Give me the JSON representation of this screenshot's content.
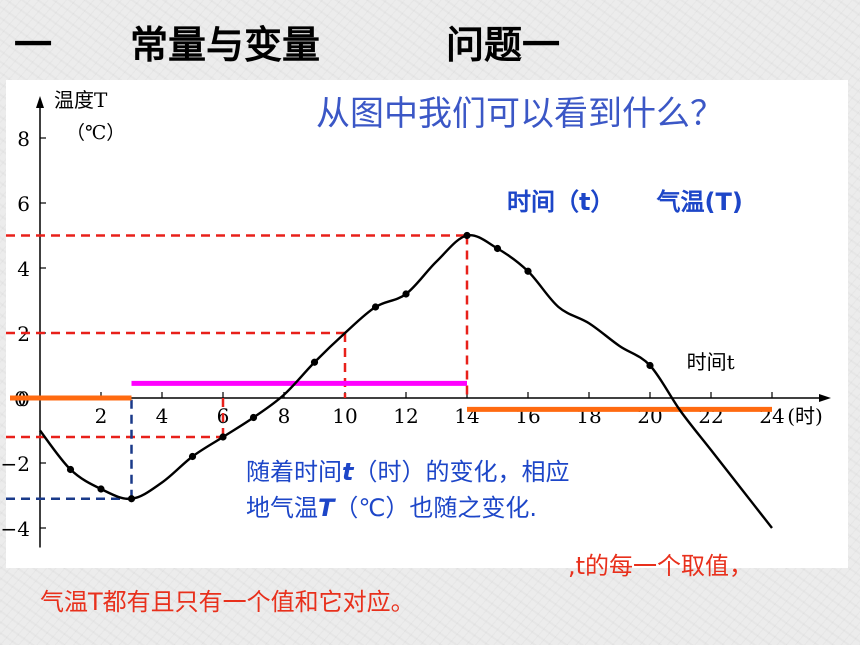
{
  "header": {
    "section_number": "一",
    "section_title": "常量与变量",
    "question_label": "问题一"
  },
  "question_text": "从图中我们可以看到什么？",
  "variables": {
    "time_label": "时间（t）",
    "temp_label": "气温(T)"
  },
  "observation": {
    "line1_pre": "随着时间",
    "line1_var": "t",
    "line1_post": "（时）的变化，相应",
    "line2_pre": "地气温",
    "line2_var": "T",
    "line2_post": "（℃）也随之变化."
  },
  "conclusion": {
    "line1": ",t的每一个取值，",
    "line2": "气温T都有且只有一个值和它对应。"
  },
  "colors": {
    "title": "#000000",
    "question": "#3b57c6",
    "annotation_blue": "#1d46c8",
    "conclusion_red": "#e8301c",
    "dashed_red": "#e8201a",
    "dashed_navy": "#1a3a8a",
    "magenta": "#ff00ff",
    "orange": "#ff6a10"
  },
  "chart_data": {
    "type": "line",
    "ylabel": "温度T",
    "yunit": "（℃）",
    "xlabel": "时间t",
    "xunit": "(时)",
    "xlim": [
      0,
      26
    ],
    "ylim": [
      -4.6,
      9
    ],
    "x_ticks": [
      2,
      4,
      6,
      8,
      10,
      12,
      14,
      16,
      18,
      20,
      22,
      24
    ],
    "y_ticks": [
      -4,
      -2,
      0,
      2,
      4,
      6,
      8
    ],
    "series": [
      {
        "x": [
          0,
          1,
          2,
          3,
          4,
          5,
          6,
          7,
          8,
          9,
          10,
          11,
          12,
          13,
          14,
          15,
          16,
          17,
          18,
          19,
          20,
          21,
          22,
          23,
          24
        ],
        "values": [
          -1.0,
          -2.2,
          -2.8,
          -3.1,
          -2.6,
          -1.8,
          -1.2,
          -0.6,
          0.1,
          1.1,
          2.0,
          2.8,
          3.2,
          4.2,
          5.0,
          4.6,
          3.9,
          2.8,
          2.3,
          1.6,
          1.0,
          -0.4,
          -1.6,
          -2.8,
          -4.0
        ]
      }
    ],
    "markers": [
      {
        "x": 1,
        "y": -2.2
      },
      {
        "x": 2,
        "y": -2.8
      },
      {
        "x": 3,
        "y": -3.1
      },
      {
        "x": 5,
        "y": -1.8
      },
      {
        "x": 6,
        "y": -1.2
      },
      {
        "x": 7,
        "y": -0.6
      },
      {
        "x": 9,
        "y": 1.1
      },
      {
        "x": 11,
        "y": 2.8
      },
      {
        "x": 12,
        "y": 3.2
      },
      {
        "x": 14,
        "y": 5.0
      },
      {
        "x": 15,
        "y": 4.6
      },
      {
        "x": 16,
        "y": 3.9
      },
      {
        "x": 20,
        "y": 1.0
      }
    ],
    "reference_lines": [
      {
        "color": "red",
        "x": 6,
        "y": -1.2
      },
      {
        "color": "red",
        "x": 10,
        "y": 2.0
      },
      {
        "color": "red",
        "x": 14,
        "y": 5.0
      },
      {
        "color": "navy",
        "x": 3,
        "y": -3.1
      }
    ],
    "highlight_bars": [
      {
        "color": "magenta",
        "y": 0.45,
        "x_from": 3,
        "x_to": 14
      },
      {
        "color": "orange",
        "y": 0.0,
        "x_from": 0,
        "x_to": 3
      },
      {
        "color": "orange",
        "y": -0.35,
        "x_from": 14,
        "x_to": 24
      }
    ]
  }
}
